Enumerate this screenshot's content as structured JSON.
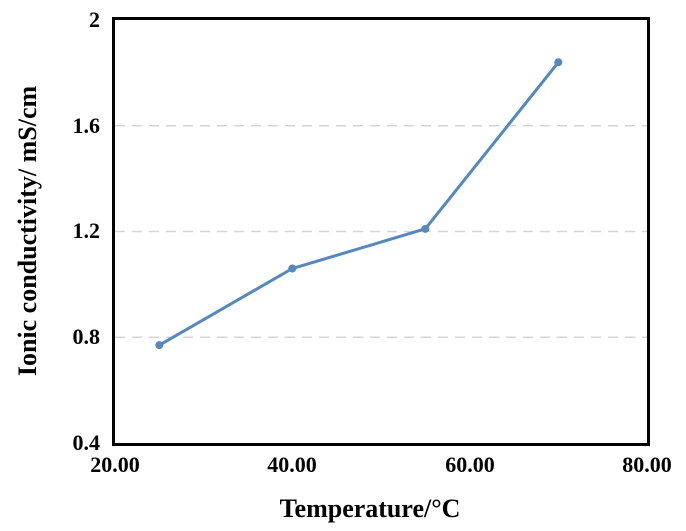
{
  "chart_data": {
    "type": "line",
    "title": "",
    "xlabel": "Temperature/°C",
    "ylabel": "Ionic conductivity/ mS/cm",
    "x": [
      25,
      40,
      55,
      70
    ],
    "y": [
      0.77,
      1.06,
      1.21,
      1.84
    ],
    "xlim": [
      20,
      80
    ],
    "ylim": [
      0.4,
      2
    ],
    "xticks": {
      "values": [
        20,
        40,
        60,
        80
      ],
      "labels": [
        "20.00",
        "40.00",
        "60.00",
        "80.00"
      ]
    },
    "yticks": {
      "values": [
        2,
        1.6,
        1.2,
        0.8,
        0.4
      ],
      "labels": [
        "2",
        "1.6",
        "1.2",
        "0.8",
        "0.4"
      ]
    },
    "gridlines": {
      "y_values": [
        1.6,
        1.2,
        0.8
      ],
      "style": "dashed",
      "color": "#d6d6d6"
    },
    "line_color": "#5588be",
    "marker": "circle",
    "marker_color": "#5588be",
    "axis_color": "#000000",
    "background_color": "#ffffff",
    "legend": "none",
    "grid": "horizontal-only"
  }
}
